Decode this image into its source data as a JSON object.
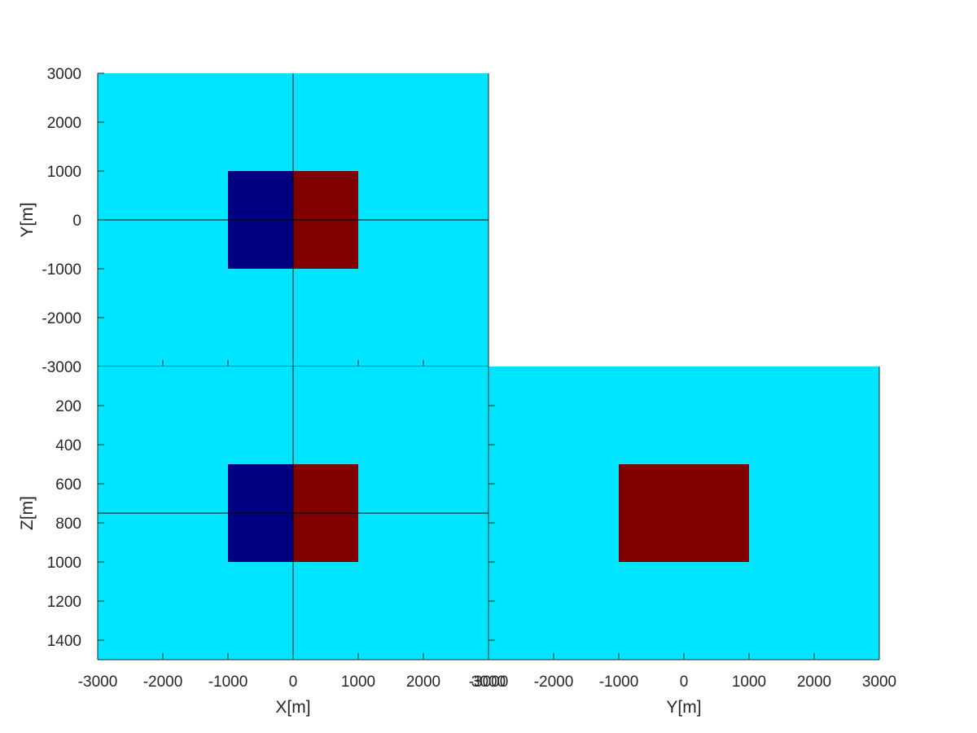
{
  "chart_data": [
    {
      "type": "heatmap",
      "view": "plan",
      "xlabel": "",
      "ylabel": "Y[m]",
      "xlim": [
        -3000,
        3000
      ],
      "ylim": [
        -3000,
        3000
      ],
      "y_direction": "up",
      "xticks": [
        -3000,
        -2000,
        -1000,
        0,
        1000,
        2000,
        3000
      ],
      "yticks": [
        -3000,
        -2000,
        -1000,
        0,
        1000,
        2000,
        3000
      ],
      "show_x_tick_labels": false,
      "background_color": "#00e5ff",
      "bodies": [
        {
          "x": [
            -1000,
            0
          ],
          "y": [
            -1000,
            1000
          ],
          "color": "#000080"
        },
        {
          "x": [
            0,
            1000
          ],
          "y": [
            -1000,
            1000
          ],
          "color": "#800000"
        }
      ],
      "crosshair": {
        "x": 0,
        "y": 0
      },
      "grid": false
    },
    {
      "type": "heatmap",
      "view": "section-xz",
      "xlabel": "X[m]",
      "ylabel": "Z[m]",
      "xlim": [
        -3000,
        3000
      ],
      "ylim": [
        0,
        1500
      ],
      "y_direction": "down",
      "xticks": [
        -3000,
        -2000,
        -1000,
        0,
        1000,
        2000,
        3000
      ],
      "yticks": [
        200,
        400,
        600,
        800,
        1000,
        1200,
        1400
      ],
      "show_x_tick_labels": true,
      "background_color": "#00e5ff",
      "bodies": [
        {
          "x": [
            -1000,
            0
          ],
          "y": [
            500,
            1000
          ],
          "color": "#000080"
        },
        {
          "x": [
            0,
            1000
          ],
          "y": [
            500,
            1000
          ],
          "color": "#800000"
        }
      ],
      "crosshair": {
        "x": 0,
        "y": 750
      },
      "grid": false
    },
    {
      "type": "heatmap",
      "view": "section-yz",
      "xlabel": "Y[m]",
      "ylabel": "",
      "xlim": [
        -3000,
        3000
      ],
      "ylim": [
        0,
        1500
      ],
      "y_direction": "down",
      "xticks": [
        -3000,
        -2000,
        -1000,
        0,
        1000,
        2000,
        3000
      ],
      "yticks": [
        200,
        400,
        600,
        800,
        1000,
        1200,
        1400
      ],
      "show_x_tick_labels": true,
      "show_y_tick_labels": false,
      "background_color": "#00e5ff",
      "bodies": [
        {
          "x": [
            -1000,
            1000
          ],
          "y": [
            500,
            1000
          ],
          "color": "#800000"
        }
      ],
      "grid": false
    }
  ]
}
